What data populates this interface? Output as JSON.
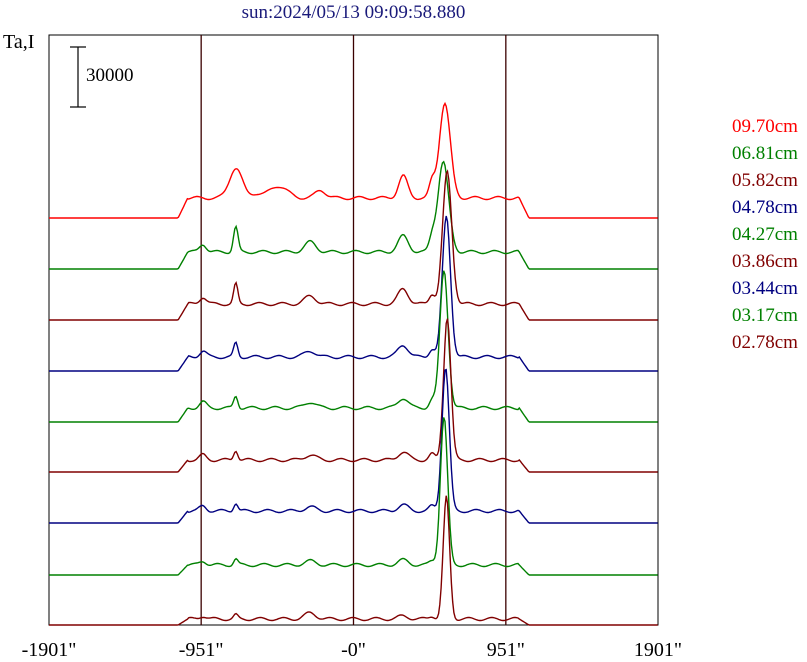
{
  "chart_data": {
    "type": "line",
    "title": "sun:2024/05/13 09:09:58.880",
    "ylabel": "Ta,I",
    "scale_bar_label": "30000",
    "x_ticks": [
      "-1901\"",
      "-951\"",
      "-0\"",
      "951\"",
      "1901\""
    ],
    "x_tick_values": [
      -1901,
      -951,
      0,
      951,
      1901
    ],
    "xlim": [
      -1901,
      1901
    ],
    "vlines": [
      -951,
      0,
      951
    ],
    "series": [
      {
        "name": "09.70cm",
        "color": "#ff0000",
        "baseline": 218,
        "spike": 95,
        "sx": 570,
        "w": 12,
        "plateau": 20,
        "gauss": [
          [
            -735,
            30,
            56
          ],
          [
            -470,
            12,
            78
          ],
          [
            -210,
            4,
            45
          ],
          [
            310,
            22,
            40
          ],
          [
            490,
            15,
            25
          ],
          [
            -610,
            4,
            45
          ],
          [
            -200,
            4,
            45
          ]
        ]
      },
      {
        "name": "06.81cm",
        "color": "#008000",
        "baseline": 269,
        "spike": 90,
        "sx": 560,
        "w": 12,
        "plateau": 17,
        "gauss": [
          [
            -735,
            25,
            20
          ],
          [
            -940,
            8,
            30
          ],
          [
            -270,
            10,
            50
          ],
          [
            310,
            16,
            45
          ],
          [
            490,
            12,
            25
          ]
        ]
      },
      {
        "name": "05.82cm",
        "color": "#800000",
        "baseline": 320,
        "spike": 132,
        "sx": 585,
        "w": 10,
        "plateau": 16,
        "gauss": [
          [
            -735,
            20,
            18
          ],
          [
            -940,
            7,
            30
          ],
          [
            -270,
            8,
            50
          ],
          [
            310,
            15,
            45
          ],
          [
            490,
            10,
            25
          ]
        ]
      },
      {
        "name": "04.78cm",
        "color": "#000080",
        "baseline": 371,
        "spike": 141,
        "sx": 580,
        "w": 9,
        "plateau": 14,
        "gauss": [
          [
            -735,
            14,
            18
          ],
          [
            -940,
            6,
            30
          ],
          [
            -270,
            6,
            50
          ],
          [
            310,
            12,
            45
          ],
          [
            490,
            8,
            25
          ]
        ]
      },
      {
        "name": "04.27cm",
        "color": "#008000",
        "baseline": 422,
        "spike": 138,
        "sx": 565,
        "w": 9,
        "plateau": 14,
        "gauss": [
          [
            -735,
            12,
            18
          ],
          [
            -940,
            6,
            30
          ],
          [
            -270,
            6,
            50
          ],
          [
            310,
            10,
            45
          ],
          [
            490,
            8,
            25
          ]
        ]
      },
      {
        "name": "03.86cm",
        "color": "#800000",
        "baseline": 472,
        "spike": 143,
        "sx": 585,
        "w": 8,
        "plateau": 12,
        "gauss": [
          [
            -735,
            10,
            18
          ],
          [
            -940,
            5,
            30
          ],
          [
            -270,
            5,
            50
          ],
          [
            310,
            8,
            45
          ],
          [
            490,
            6,
            25
          ]
        ]
      },
      {
        "name": "03.44cm",
        "color": "#000080",
        "baseline": 523,
        "spike": 144,
        "sx": 575,
        "w": 8,
        "plateau": 12,
        "gauss": [
          [
            -735,
            8,
            18
          ],
          [
            -940,
            5,
            30
          ],
          [
            -270,
            4,
            50
          ],
          [
            310,
            6,
            45
          ],
          [
            490,
            5,
            25
          ]
        ]
      },
      {
        "name": "03.17cm",
        "color": "#008000",
        "baseline": 575,
        "spike": 148,
        "sx": 565,
        "w": 8,
        "plateau": 10,
        "gauss": [
          [
            -735,
            6,
            18
          ],
          [
            -940,
            4,
            30
          ],
          [
            -270,
            4,
            50
          ],
          [
            310,
            5,
            45
          ],
          [
            490,
            4,
            25
          ]
        ]
      },
      {
        "name": "02.78cm",
        "color": "#800000",
        "baseline": 625,
        "spike": 122,
        "sx": 580,
        "w": 7,
        "plateau": 6,
        "gauss": [
          [
            -735,
            4,
            18
          ],
          [
            -940,
            3,
            30
          ],
          [
            -270,
            6,
            50
          ],
          [
            310,
            3,
            45
          ],
          [
            490,
            3,
            25
          ]
        ]
      }
    ]
  }
}
